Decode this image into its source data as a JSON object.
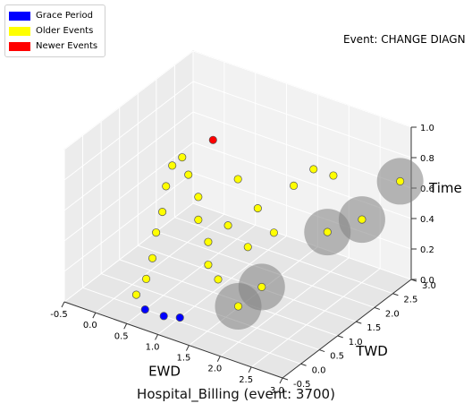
{
  "legend": {
    "items": [
      {
        "label": "Grace Period",
        "color": "#0000ff"
      },
      {
        "label": "Older Events",
        "color": "#ffff00"
      },
      {
        "label": "Newer Events",
        "color": "#ff0000"
      }
    ]
  },
  "event_label": "Event: CHANGE DIAGN",
  "caption": "Hospital_Billing (event: 3700)",
  "chart_data": {
    "type": "scatter",
    "title": "",
    "xlabel": "EWD",
    "ylabel": "TWD",
    "zlabel": "Time",
    "xlim": [
      -0.5,
      3.0
    ],
    "ylim": [
      -0.5,
      3.0
    ],
    "zlim": [
      0.0,
      1.0
    ],
    "x_ticks": [
      "-0.5",
      "0.0",
      "0.5",
      "1.0",
      "1.5",
      "2.0",
      "2.5",
      "3.0"
    ],
    "y_ticks": [
      "-0.5",
      "0.0",
      "0.5",
      "1.0",
      "1.5",
      "2.0",
      "2.5",
      "3.0"
    ],
    "z_ticks": [
      "0.0",
      "0.2",
      "0.4",
      "0.6",
      "0.8",
      "1.0"
    ],
    "grid": true,
    "legend_position": "top-left",
    "colors": {
      "older": "#ffff00",
      "grace": "#0000ff",
      "newer": "#ff0000",
      "cluster": "#808080",
      "edge": "#555555"
    },
    "clusters": [
      {
        "x": 2.6,
        "y": 1.4,
        "z": 0.55
      },
      {
        "x": 2.8,
        "y": 2.0,
        "z": 0.55
      },
      {
        "x": 3.0,
        "y": 2.7,
        "z": 0.7
      },
      {
        "x": 1.7,
        "y": 0.5,
        "z": 0.1
      },
      {
        "x": 1.9,
        "y": 0.8,
        "z": 0.2
      }
    ],
    "series": [
      {
        "name": "Older Events",
        "key": "older",
        "points": [
          {
            "x": 0.4,
            "y": 0.2,
            "z": 0.15
          },
          {
            "x": 0.5,
            "y": 0.2,
            "z": 0.3
          },
          {
            "x": 0.5,
            "y": 0.3,
            "z": 0.45
          },
          {
            "x": 0.6,
            "y": 0.3,
            "z": 0.6
          },
          {
            "x": 0.6,
            "y": 0.4,
            "z": 0.75
          },
          {
            "x": 0.7,
            "y": 0.4,
            "z": 0.9
          },
          {
            "x": 0.8,
            "y": 0.5,
            "z": 0.95
          },
          {
            "x": 0.9,
            "y": 0.5,
            "z": 0.85
          },
          {
            "x": 1.0,
            "y": 0.6,
            "z": 0.7
          },
          {
            "x": 1.0,
            "y": 0.6,
            "z": 0.55
          },
          {
            "x": 1.1,
            "y": 0.7,
            "z": 0.4
          },
          {
            "x": 1.1,
            "y": 0.7,
            "z": 0.25
          },
          {
            "x": 1.2,
            "y": 0.8,
            "z": 0.15
          },
          {
            "x": 1.3,
            "y": 0.9,
            "z": 0.5
          },
          {
            "x": 1.4,
            "y": 1.0,
            "z": 0.8
          },
          {
            "x": 1.5,
            "y": 1.1,
            "z": 0.35
          },
          {
            "x": 1.6,
            "y": 1.2,
            "z": 0.6
          },
          {
            "x": 1.8,
            "y": 1.3,
            "z": 0.45
          },
          {
            "x": 2.0,
            "y": 1.5,
            "z": 0.75
          },
          {
            "x": 2.2,
            "y": 1.7,
            "z": 0.85
          },
          {
            "x": 2.4,
            "y": 1.9,
            "z": 0.8
          },
          {
            "x": 2.6,
            "y": 1.4,
            "z": 0.55
          },
          {
            "x": 2.8,
            "y": 2.0,
            "z": 0.55
          },
          {
            "x": 3.0,
            "y": 2.7,
            "z": 0.7
          },
          {
            "x": 1.7,
            "y": 0.5,
            "z": 0.1
          },
          {
            "x": 1.9,
            "y": 0.8,
            "z": 0.2
          },
          {
            "x": 0.3,
            "y": 0.1,
            "z": 0.05
          }
        ]
      },
      {
        "name": "Grace Period",
        "key": "grace",
        "points": [
          {
            "x": 0.5,
            "y": 0.0,
            "z": 0.0
          },
          {
            "x": 0.8,
            "y": 0.0,
            "z": 0.0
          },
          {
            "x": 1.0,
            "y": 0.1,
            "z": 0.0
          }
        ]
      },
      {
        "name": "Newer Events",
        "key": "newer",
        "points": [
          {
            "x": 1.0,
            "y": 1.0,
            "z": 1.0
          }
        ]
      }
    ]
  }
}
